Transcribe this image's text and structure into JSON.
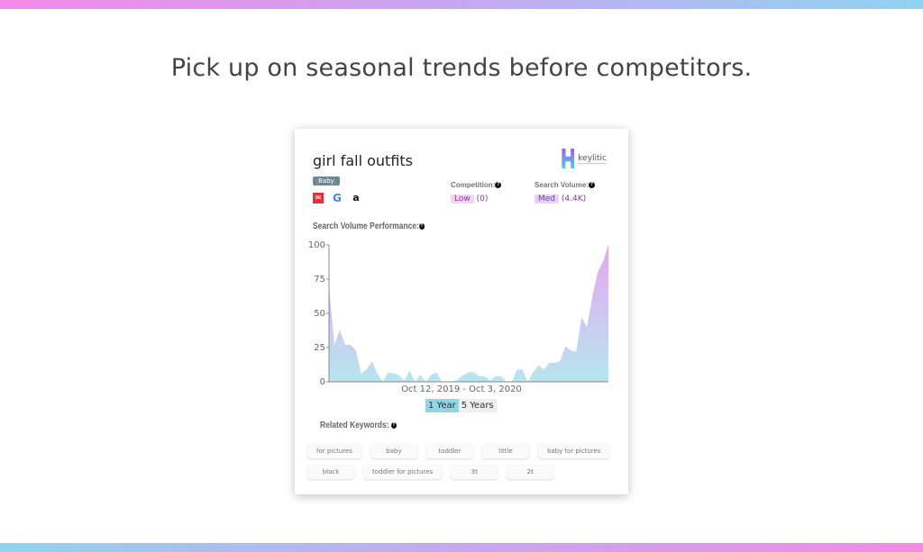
{
  "headline": "Pick up on seasonal trends before competitors.",
  "card": {
    "keyword": "girl fall outfits",
    "category": "Baby",
    "sources": [
      "ebay-icon",
      "google-icon",
      "amazon-icon"
    ],
    "logo": "keylitic",
    "competition": {
      "label": "Competition:",
      "level": "Low",
      "value": "(0)"
    },
    "search_volume": {
      "label": "Search Volume:",
      "level": "Med",
      "value": "(4.4K)"
    },
    "performance_label": "Search Volume Performance:",
    "date_range": "Oct 12, 2019 - Oct 3, 2020",
    "toggle": [
      "1 Year",
      "5 Years"
    ],
    "active_toggle": "1 Year",
    "related_label": "Related Keywords:",
    "related": [
      "for pictures",
      "baby",
      "toddler",
      "little",
      "baby for pictures",
      "black",
      "toddler for pictures",
      "3t",
      "2t"
    ]
  },
  "chart_data": {
    "type": "area",
    "yticks": [
      0,
      25,
      50,
      75,
      100
    ],
    "ylim": [
      0,
      100
    ],
    "values": [
      70,
      27,
      38,
      27,
      27,
      23,
      6,
      9,
      15,
      6,
      0,
      7,
      6,
      5,
      1,
      8,
      0,
      5,
      0,
      5,
      7,
      0,
      0,
      0,
      2,
      5,
      7,
      7,
      4,
      4,
      1,
      4,
      4,
      0,
      0,
      9,
      9,
      0,
      7,
      12,
      9,
      14,
      14,
      15,
      26,
      23,
      22,
      47,
      40,
      62,
      80,
      88,
      100
    ],
    "colors": {
      "top": "#e7a6f0",
      "bottom": "#b6e6ef"
    }
  }
}
